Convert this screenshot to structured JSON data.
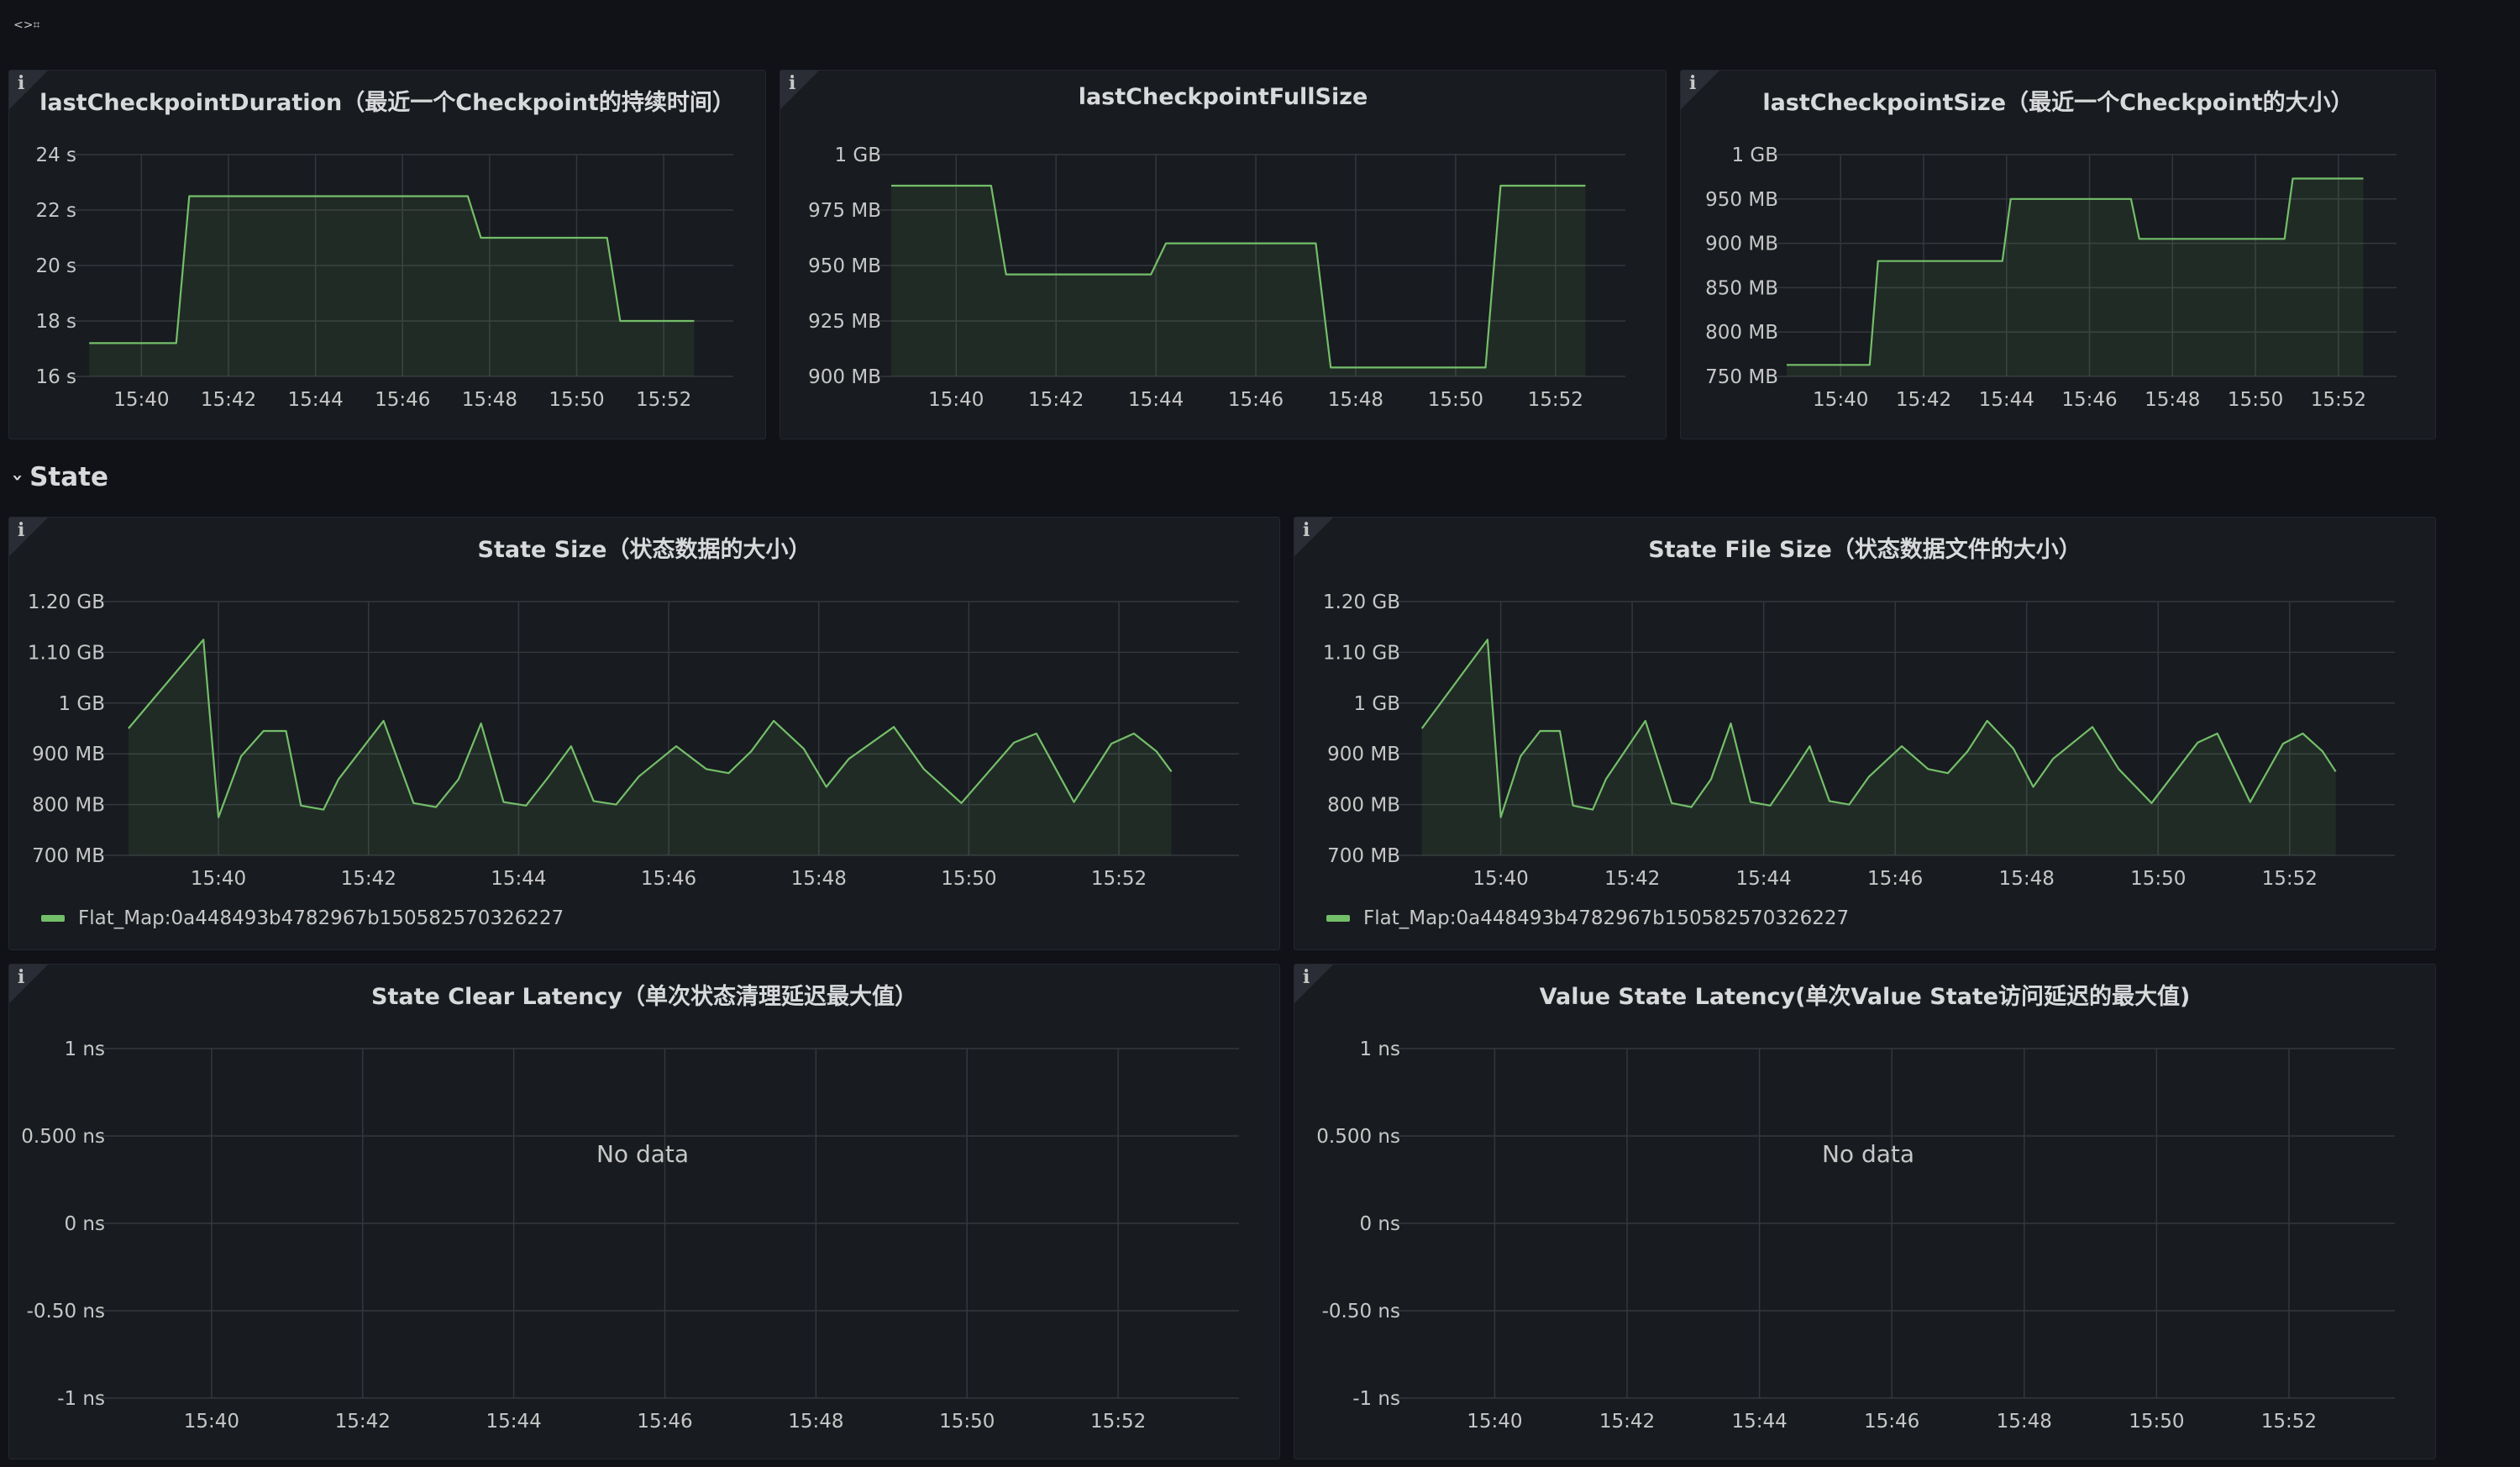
{
  "page": {
    "mark": "<>⌗"
  },
  "row": {
    "title": "State"
  },
  "colors": {
    "series": "#73bf69",
    "grid": "#34373d",
    "text": "#c7c7c7",
    "panel_bg": "#181b1f",
    "bg": "#111217"
  },
  "panels": [
    {
      "title": "lastCheckpointDuration（最近一个Checkpoint的持续时间）",
      "info_icon": "i",
      "no_data": "",
      "legend": "",
      "chart_data": {
        "type": "area",
        "xlabels": [
          "15:40",
          "15:42",
          "15:44",
          "15:46",
          "15:48",
          "15:50",
          "15:52"
        ],
        "ylabels": [
          "24 s",
          "22 s",
          "20 s",
          "18 s",
          "16 s"
        ],
        "ylim": [
          16,
          24
        ],
        "xlim": [
          38.7,
          53.6
        ],
        "x": [
          38.8,
          40.8,
          41.1,
          47.5,
          47.8,
          50.7,
          51.0,
          52.7
        ],
        "y": [
          17.2,
          17.2,
          22.5,
          22.5,
          21.0,
          21.0,
          18.0,
          18.0
        ],
        "step": false,
        "grid": true
      }
    },
    {
      "title": "lastCheckpointFullSize",
      "info_icon": "i",
      "no_data": "",
      "legend": "",
      "chart_data": {
        "type": "area",
        "xlabels": [
          "15:40",
          "15:42",
          "15:44",
          "15:46",
          "15:48",
          "15:50",
          "15:52"
        ],
        "ylabels": [
          "1 GB",
          "975 MB",
          "950 MB",
          "925 MB",
          "900 MB"
        ],
        "ylim": [
          900,
          1000
        ],
        "xlim": [
          38.7,
          53.4
        ],
        "x": [
          38.7,
          40.7,
          41.0,
          43.9,
          44.2,
          47.2,
          47.5,
          50.6,
          50.9,
          52.6
        ],
        "y": [
          986,
          986,
          946,
          946,
          960,
          960,
          904,
          904,
          986,
          986
        ],
        "step": false,
        "grid": true
      }
    },
    {
      "title": "lastCheckpointSize（最近一个Checkpoint的大小）",
      "info_icon": "i",
      "no_data": "",
      "legend": "",
      "chart_data": {
        "type": "area",
        "xlabels": [
          "15:40",
          "15:42",
          "15:44",
          "15:46",
          "15:48",
          "15:50",
          "15:52"
        ],
        "ylabels": [
          "1 GB",
          "950 MB",
          "900 MB",
          "850 MB",
          "800 MB",
          "750 MB"
        ],
        "ylim": [
          750,
          1000
        ],
        "xlim": [
          38.7,
          53.4
        ],
        "x": [
          38.7,
          40.7,
          40.9,
          43.9,
          44.1,
          47.0,
          47.2,
          50.7,
          50.9,
          52.6
        ],
        "y": [
          763,
          763,
          880,
          880,
          950,
          950,
          905,
          905,
          973,
          973
        ],
        "step": false,
        "grid": true
      }
    },
    {
      "title": "State Size（状态数据的大小）",
      "info_icon": "i",
      "no_data": "",
      "legend": "Flat_Map:0a448493b4782967b150582570326227",
      "chart_data": {
        "type": "area",
        "xlabels": [
          "15:40",
          "15:42",
          "15:44",
          "15:46",
          "15:48",
          "15:50",
          "15:52"
        ],
        "ylabels": [
          "1.20 GB",
          "1.10 GB",
          "1 GB",
          "900 MB",
          "800 MB",
          "700 MB"
        ],
        "ylim": [
          700,
          1200
        ],
        "xlim": [
          38.6,
          53.6
        ],
        "x": [
          38.8,
          39.8,
          40.0,
          40.3,
          40.6,
          40.9,
          41.1,
          41.4,
          41.6,
          42.2,
          42.6,
          42.9,
          43.2,
          43.5,
          43.8,
          44.1,
          44.4,
          44.7,
          45.0,
          45.3,
          45.6,
          46.1,
          46.5,
          46.8,
          47.1,
          47.4,
          47.8,
          48.1,
          48.4,
          49.0,
          49.4,
          49.9,
          50.6,
          50.9,
          51.4,
          51.9,
          52.2,
          52.5,
          52.7
        ],
        "y": [
          950,
          1125,
          775,
          895,
          945,
          945,
          798,
          790,
          850,
          965,
          803,
          795,
          850,
          960,
          805,
          798,
          855,
          915,
          807,
          800,
          855,
          915,
          870,
          862,
          905,
          965,
          910,
          835,
          890,
          953,
          870,
          803,
          922,
          940,
          805,
          920,
          940,
          905,
          865
        ],
        "step": false,
        "grid": true
      }
    },
    {
      "title": "State File Size（状态数据文件的大小）",
      "info_icon": "i",
      "no_data": "",
      "legend": "Flat_Map:0a448493b4782967b150582570326227",
      "chart_data": {
        "type": "area",
        "xlabels": [
          "15:40",
          "15:42",
          "15:44",
          "15:46",
          "15:48",
          "15:50",
          "15:52"
        ],
        "ylabels": [
          "1.20 GB",
          "1.10 GB",
          "1 GB",
          "900 MB",
          "800 MB",
          "700 MB"
        ],
        "ylim": [
          700,
          1200
        ],
        "xlim": [
          38.6,
          53.6
        ],
        "x": [
          38.8,
          39.8,
          40.0,
          40.3,
          40.6,
          40.9,
          41.1,
          41.4,
          41.6,
          42.2,
          42.6,
          42.9,
          43.2,
          43.5,
          43.8,
          44.1,
          44.4,
          44.7,
          45.0,
          45.3,
          45.6,
          46.1,
          46.5,
          46.8,
          47.1,
          47.4,
          47.8,
          48.1,
          48.4,
          49.0,
          49.4,
          49.9,
          50.6,
          50.9,
          51.4,
          51.9,
          52.2,
          52.5,
          52.7
        ],
        "y": [
          950,
          1125,
          775,
          895,
          945,
          945,
          798,
          790,
          850,
          965,
          803,
          795,
          850,
          960,
          805,
          798,
          855,
          915,
          807,
          800,
          855,
          915,
          870,
          862,
          905,
          965,
          910,
          835,
          890,
          953,
          870,
          803,
          922,
          940,
          805,
          920,
          940,
          905,
          865
        ],
        "step": false,
        "grid": true
      }
    },
    {
      "title": "State Clear Latency（单次状态清理延迟最大值）",
      "info_icon": "i",
      "no_data": "No data",
      "legend": "",
      "chart_data": {
        "type": "line",
        "xlabels": [
          "15:40",
          "15:42",
          "15:44",
          "15:46",
          "15:48",
          "15:50",
          "15:52"
        ],
        "ylabels": [
          "1 ns",
          "0.500 ns",
          "0 ns",
          "-0.50 ns",
          "-1 ns"
        ],
        "ylim": [
          -1,
          1
        ],
        "xlim": [
          38.7,
          53.6
        ],
        "x": [],
        "y": [],
        "step": false,
        "grid": true
      }
    },
    {
      "title": "Value State Latency(单次Value State访问延迟的最大值)",
      "info_icon": "i",
      "no_data": "No data",
      "legend": "",
      "chart_data": {
        "type": "line",
        "xlabels": [
          "15:40",
          "15:42",
          "15:44",
          "15:46",
          "15:48",
          "15:50",
          "15:52"
        ],
        "ylabels": [
          "1 ns",
          "0.500 ns",
          "0 ns",
          "-0.50 ns",
          "-1 ns"
        ],
        "ylim": [
          -1,
          1
        ],
        "xlim": [
          38.7,
          53.6
        ],
        "x": [],
        "y": [],
        "step": false,
        "grid": true
      }
    }
  ]
}
